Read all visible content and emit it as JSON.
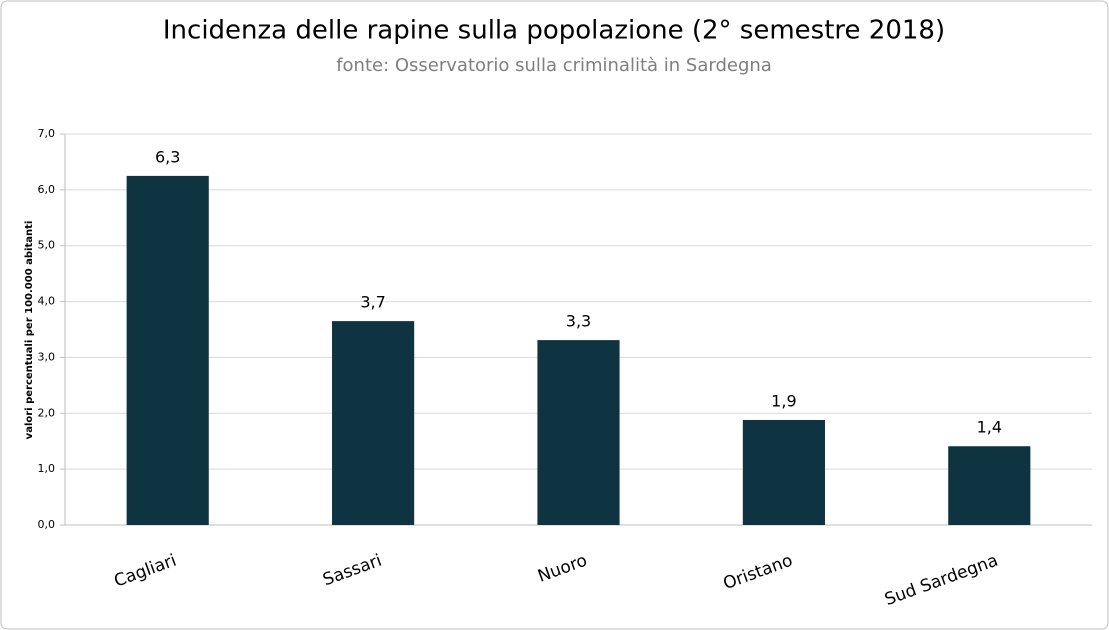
{
  "chart_data": {
    "type": "bar",
    "title": "Incidenza delle rapine sulla popolazione (2° semestre 2018)",
    "subtitle": "fonte: Osservatorio sulla criminalità in Sardegna",
    "y_label": "valori percentuali per 100.000 abitanti",
    "categories": [
      "Cagliari",
      "Sassari",
      "Nuoro",
      "Oristano",
      "Sud Sardegna"
    ],
    "values": [
      6.25,
      3.65,
      3.31,
      1.88,
      1.41
    ],
    "value_labels": [
      "6,3",
      "3,7",
      "3,3",
      "1,9",
      "1,4"
    ],
    "color": "#0d3440",
    "ylim": [
      0,
      7
    ],
    "yticks": [
      {
        "value": 0,
        "label": "0,0"
      },
      {
        "value": 1,
        "label": "1,0"
      },
      {
        "value": 2,
        "label": "2,0"
      },
      {
        "value": 3,
        "label": "3,0"
      },
      {
        "value": 4,
        "label": "4,0"
      },
      {
        "value": 5,
        "label": "5,0"
      },
      {
        "value": 6,
        "label": "6,0"
      },
      {
        "value": 7,
        "label": "7,0"
      }
    ],
    "grid": true
  }
}
